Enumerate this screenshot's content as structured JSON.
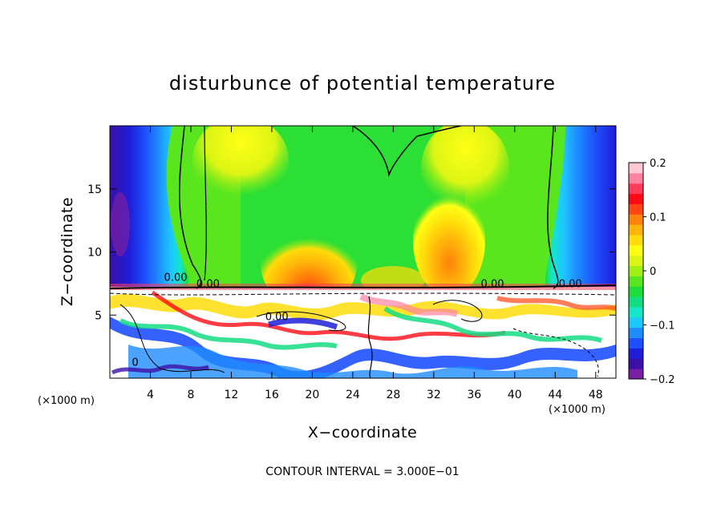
{
  "chart_data": {
    "type": "heatmap",
    "title": "disturbunce of potential temperature",
    "xlabel": "X−coordinate",
    "ylabel": "Z−coordinate",
    "x_unit_label": "(×1000 m)",
    "x_unit_label_right": "(×1000 m)",
    "xlim": [
      0,
      50
    ],
    "ylim": [
      0,
      20
    ],
    "x_ticks": [
      4,
      8,
      12,
      16,
      20,
      24,
      28,
      32,
      36,
      40,
      44,
      48
    ],
    "x_tick_labels": [
      "4",
      "8",
      "12",
      "16",
      "20",
      "24",
      "28",
      "32",
      "36",
      "40",
      "44",
      "48"
    ],
    "y_ticks": [
      5,
      10,
      15
    ],
    "y_tick_labels": [
      "5",
      "10",
      "15"
    ],
    "colorbar": {
      "min": -0.2,
      "max": 0.2,
      "labels": [
        {
          "value": 0.2,
          "text": "0.2"
        },
        {
          "value": 0.1,
          "text": "0.1"
        },
        {
          "value": 0.0,
          "text": "0"
        },
        {
          "value": -0.1,
          "text": "−0.1"
        },
        {
          "value": -0.2,
          "text": "−0.2"
        }
      ],
      "colors": [
        "#7a1fa2",
        "#3c0fa8",
        "#1e1ed8",
        "#1e50ff",
        "#1e8cff",
        "#1ec8ff",
        "#14e6c8",
        "#14dc82",
        "#1edc3c",
        "#5ae61e",
        "#a0f014",
        "#dcf514",
        "#ffff14",
        "#ffdc0a",
        "#ffb40a",
        "#ff820a",
        "#ff4614",
        "#ff0a14",
        "#ff3c5a",
        "#ff82a0",
        "#ffc8d2"
      ]
    },
    "contour_labels": [
      {
        "text": "0.00",
        "x": 6.5,
        "y": 7.7
      },
      {
        "text": "0.00",
        "x": 9.7,
        "y": 7.2
      },
      {
        "text": "0.00",
        "x": 16.5,
        "y": 4.6
      },
      {
        "text": "0.00",
        "x": 37.8,
        "y": 7.2
      },
      {
        "text": "0.00",
        "x": 45.5,
        "y": 7.2
      },
      {
        "text": "0",
        "x": 2.5,
        "y": 1.0
      }
    ],
    "annotation": "CONTOUR INTERVAL = 3.000E−01"
  }
}
